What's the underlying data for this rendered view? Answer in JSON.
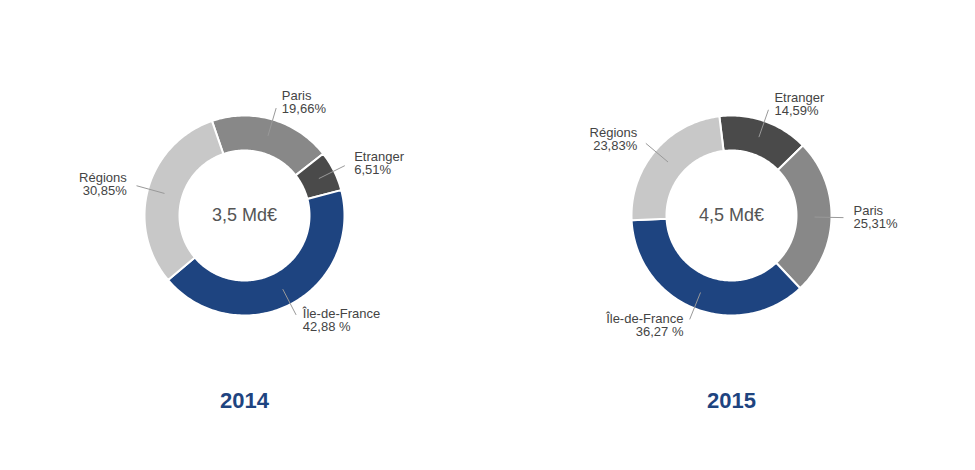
{
  "chart_data": [
    {
      "type": "donut",
      "title": "2014",
      "annotation": "3,5 Md€",
      "categories": [
        "Paris",
        "Etranger",
        "Île-de-France",
        "Régions"
      ],
      "values": [
        19.66,
        6.51,
        42.88,
        30.85
      ],
      "value_labels": [
        "19,66%",
        "6,51%",
        "42,88 %",
        "30,85%"
      ],
      "colors": [
        "#888888",
        "#4a4a4a",
        "#1e4480",
        "#c8c8c8"
      ]
    },
    {
      "type": "donut",
      "title": "2015",
      "annotation": "4,5 Md€",
      "categories": [
        "Etranger",
        "Paris",
        "Île-de-France",
        "Régions"
      ],
      "values": [
        14.59,
        25.31,
        36.27,
        23.83
      ],
      "value_labels": [
        "14,59%",
        "25,31%",
        "36,27 %",
        "23,83%"
      ],
      "colors": [
        "#4a4a4a",
        "#888888",
        "#1e4480",
        "#c8c8c8"
      ]
    }
  ]
}
